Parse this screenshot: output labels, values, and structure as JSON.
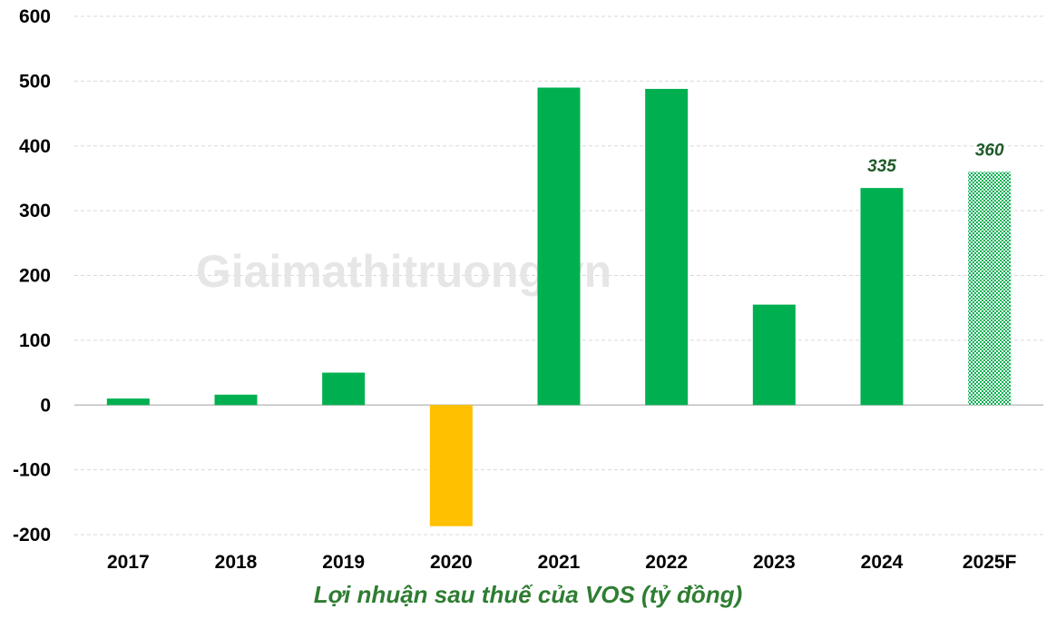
{
  "watermark": "Giaimathitruong.vn",
  "colors": {
    "positive": "#00b050",
    "negative": "#ffc000",
    "forecast": "#00b050",
    "grid": "#d9d9d9",
    "zero_line": "#bfbfbf",
    "data_label": "#1e5a28",
    "title": "#2f7d32"
  },
  "chart_data": {
    "type": "bar",
    "title": "Lợi nhuận sau thuế của VOS (tỷ đồng)",
    "xlabel": "",
    "ylabel": "",
    "categories": [
      "2017",
      "2018",
      "2019",
      "2020",
      "2021",
      "2022",
      "2023",
      "2024",
      "2025F"
    ],
    "values": [
      10,
      16,
      50,
      -187,
      490,
      488,
      155,
      335,
      360
    ],
    "forecast": [
      false,
      false,
      false,
      false,
      false,
      false,
      false,
      false,
      true
    ],
    "data_labels": [
      null,
      null,
      null,
      null,
      null,
      null,
      null,
      "335",
      "360"
    ],
    "ylim": [
      -200,
      600
    ],
    "yticks": [
      -200,
      -100,
      0,
      100,
      200,
      300,
      400,
      500,
      600
    ],
    "ytick_labels": [
      "-200",
      "-100",
      "0",
      "100",
      "200",
      "300",
      "400",
      "500",
      "600"
    ],
    "grid": true,
    "legend": "none"
  }
}
